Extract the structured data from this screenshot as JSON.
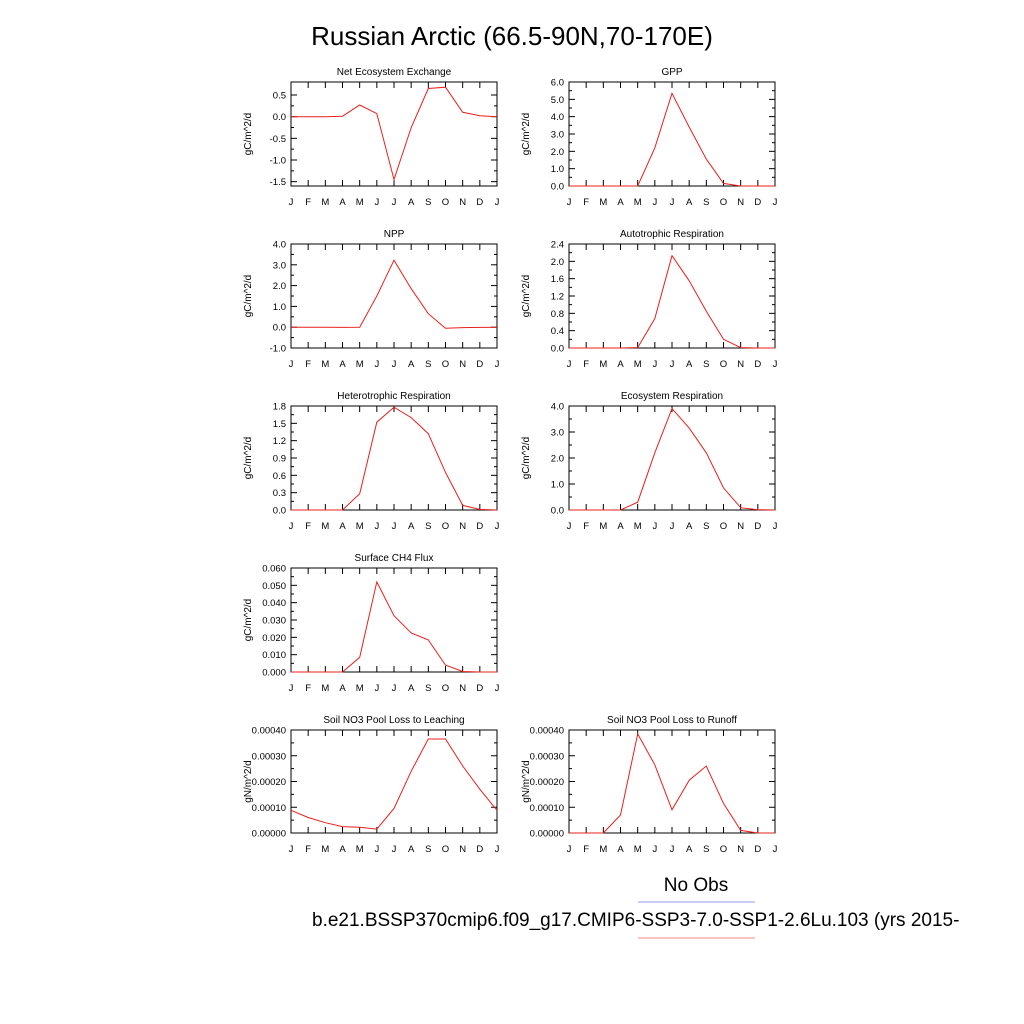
{
  "figure": {
    "title": "Russian Arctic (66.5-90N,70-170E)",
    "legend": {
      "obs_label": "No Obs",
      "obs_color": "#8f9cf0",
      "model_label": "b.e21.BSSP370cmip6.f09_g17.CMIP6-SSP3-7.0-SSP1-2.6Lu.103 (yrs 2015-",
      "model_color": "#f08a8a"
    },
    "series_color": "#e8201c"
  },
  "chart_data": [
    {
      "type": "line",
      "title": "Net Ecosystem Exchange",
      "ylabel": "gC/m^2/d",
      "x": [
        "J",
        "F",
        "M",
        "A",
        "M",
        "J",
        "J",
        "A",
        "S",
        "O",
        "N",
        "D",
        "J"
      ],
      "values": [
        0.0,
        0.0,
        0.0,
        0.01,
        0.27,
        0.07,
        -1.45,
        -0.25,
        0.65,
        0.68,
        0.1,
        0.02,
        0.0
      ],
      "ylim": [
        -1.6,
        0.8
      ],
      "yticks": [
        -1.5,
        -1.0,
        -0.5,
        0.0,
        0.5
      ],
      "yticklabels": [
        "-1.5",
        "-1.0",
        "-0.5",
        "0.0",
        "0.5"
      ]
    },
    {
      "type": "line",
      "title": "GPP",
      "ylabel": "gC/m^2/d",
      "x": [
        "J",
        "F",
        "M",
        "A",
        "M",
        "J",
        "J",
        "A",
        "S",
        "O",
        "N",
        "D",
        "J"
      ],
      "values": [
        0.0,
        0.0,
        0.0,
        0.0,
        0.0,
        2.2,
        5.35,
        3.4,
        1.55,
        0.15,
        0.0,
        0.0,
        0.0
      ],
      "ylim": [
        0,
        6.0
      ],
      "yticks": [
        0.0,
        1.0,
        2.0,
        3.0,
        4.0,
        5.0,
        6.0
      ],
      "yticklabels": [
        "0.0",
        "1.0",
        "2.0",
        "3.0",
        "4.0",
        "5.0",
        "6.0"
      ]
    },
    {
      "type": "line",
      "title": "NPP",
      "ylabel": "gC/m^2/d",
      "x": [
        "J",
        "F",
        "M",
        "A",
        "M",
        "J",
        "J",
        "A",
        "S",
        "O",
        "N",
        "D",
        "J"
      ],
      "values": [
        0.0,
        0.0,
        0.0,
        -0.01,
        0.0,
        1.5,
        3.22,
        1.85,
        0.65,
        -0.05,
        -0.02,
        -0.01,
        -0.01
      ],
      "ylim": [
        -1.0,
        4.0
      ],
      "yticks": [
        -1.0,
        0.0,
        1.0,
        2.0,
        3.0,
        4.0
      ],
      "yticklabels": [
        "-1.0",
        "0.0",
        "1.0",
        "2.0",
        "3.0",
        "4.0"
      ]
    },
    {
      "type": "line",
      "title": "Autotrophic Respiration",
      "ylabel": "gC/m^2/d",
      "x": [
        "J",
        "F",
        "M",
        "A",
        "M",
        "J",
        "J",
        "A",
        "S",
        "O",
        "N",
        "D",
        "J"
      ],
      "values": [
        0.0,
        0.0,
        0.0,
        0.0,
        0.01,
        0.68,
        2.13,
        1.55,
        0.85,
        0.2,
        0.01,
        0.0,
        0.0
      ],
      "ylim": [
        0,
        2.4
      ],
      "yticks": [
        0.0,
        0.4,
        0.8,
        1.2,
        1.6,
        2.0,
        2.4
      ],
      "yticklabels": [
        "0.0",
        "0.4",
        "0.8",
        "1.2",
        "1.6",
        "2.0",
        "2.4"
      ]
    },
    {
      "type": "line",
      "title": "Heterotrophic Respiration",
      "ylabel": "gC/m^2/d",
      "x": [
        "J",
        "F",
        "M",
        "A",
        "M",
        "J",
        "J",
        "A",
        "S",
        "O",
        "N",
        "D",
        "J"
      ],
      "values": [
        0.0,
        0.0,
        0.0,
        0.0,
        0.28,
        1.52,
        1.78,
        1.6,
        1.32,
        0.65,
        0.08,
        0.01,
        0.0
      ],
      "ylim": [
        0,
        1.8
      ],
      "yticks": [
        0.0,
        0.3,
        0.6,
        0.9,
        1.2,
        1.5,
        1.8
      ],
      "yticklabels": [
        "0.0",
        "0.3",
        "0.6",
        "0.9",
        "1.2",
        "1.5",
        "1.8"
      ]
    },
    {
      "type": "line",
      "title": "Ecosystem Respiration",
      "ylabel": "gC/m^2/d",
      "x": [
        "J",
        "F",
        "M",
        "A",
        "M",
        "J",
        "J",
        "A",
        "S",
        "O",
        "N",
        "D",
        "J"
      ],
      "values": [
        0.0,
        0.0,
        0.0,
        0.0,
        0.3,
        2.2,
        3.9,
        3.15,
        2.2,
        0.85,
        0.09,
        0.01,
        0.0
      ],
      "ylim": [
        0,
        4.0
      ],
      "yticks": [
        0.0,
        1.0,
        2.0,
        3.0,
        4.0
      ],
      "yticklabels": [
        "0.0",
        "1.0",
        "2.0",
        "3.0",
        "4.0"
      ]
    },
    {
      "type": "line",
      "title": "Surface CH4 Flux",
      "ylabel": "gC/m^2/d",
      "x": [
        "J",
        "F",
        "M",
        "A",
        "M",
        "J",
        "J",
        "A",
        "S",
        "O",
        "N",
        "D",
        "J"
      ],
      "values": [
        0.0,
        0.0,
        0.0,
        0.0,
        0.0085,
        0.052,
        0.0325,
        0.0225,
        0.0185,
        0.004,
        0.0003,
        0.0,
        0.0
      ],
      "ylim": [
        0,
        0.06
      ],
      "yticks": [
        0.0,
        0.01,
        0.02,
        0.03,
        0.04,
        0.05,
        0.06
      ],
      "yticklabels": [
        "0.000",
        "0.010",
        "0.020",
        "0.030",
        "0.040",
        "0.050",
        "0.060"
      ]
    },
    {
      "type": "line",
      "title": "Soil NO3 Pool Loss to Leaching",
      "ylabel": "gN/m^2/d",
      "x": [
        "J",
        "F",
        "M",
        "A",
        "M",
        "J",
        "J",
        "A",
        "S",
        "O",
        "N",
        "D",
        "J"
      ],
      "values": [
        8.8e-05,
        6e-05,
        4e-05,
        2.5e-05,
        2.2e-05,
        1.5e-05,
        9.5e-05,
        0.00024,
        0.000365,
        0.000365,
        0.00026,
        0.00017,
        8.8e-05
      ],
      "ylim": [
        0,
        0.0004
      ],
      "yticks": [
        0.0,
        0.0001,
        0.0002,
        0.0003,
        0.0004
      ],
      "yticklabels": [
        "0.00000",
        "0.00010",
        "0.00020",
        "0.00030",
        "0.00040"
      ]
    },
    {
      "type": "line",
      "title": "Soil NO3 Pool Loss to Runoff",
      "ylabel": "gN/m^2/d",
      "x": [
        "J",
        "F",
        "M",
        "A",
        "M",
        "J",
        "J",
        "A",
        "S",
        "O",
        "N",
        "D",
        "J"
      ],
      "values": [
        0.0,
        0.0,
        0.0,
        7e-05,
        0.000385,
        0.000265,
        9e-05,
        0.000205,
        0.00026,
        0.000115,
        1e-05,
        0.0,
        0.0
      ],
      "ylim": [
        0,
        0.0004
      ],
      "yticks": [
        0.0,
        0.0001,
        0.0002,
        0.0003,
        0.0004
      ],
      "yticklabels": [
        "0.00000",
        "0.00010",
        "0.00020",
        "0.00030",
        "0.00040"
      ]
    }
  ]
}
